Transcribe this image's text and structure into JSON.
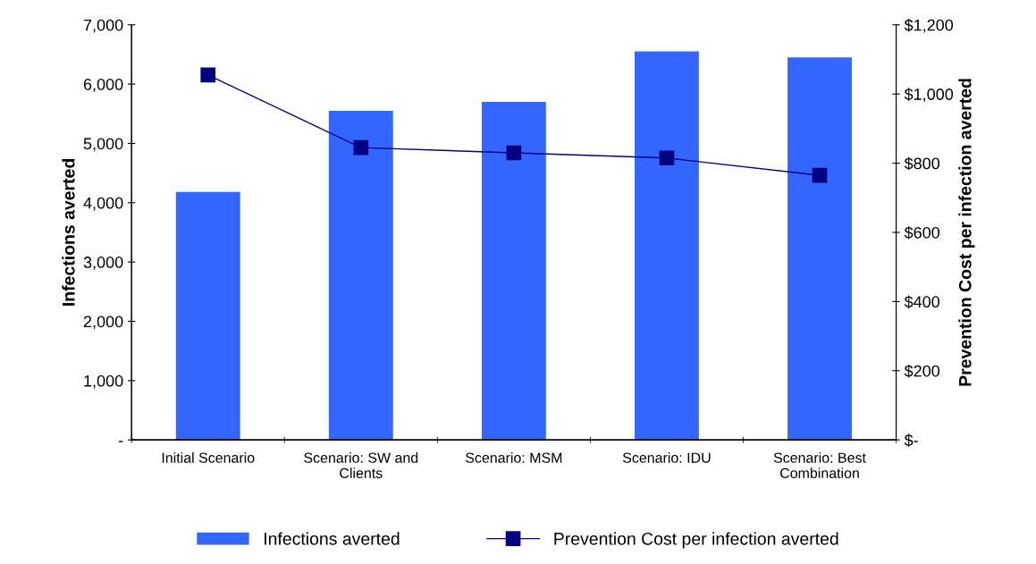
{
  "chart_data": {
    "type": "bar",
    "categories": [
      "Initial Scenario",
      "Scenario: SW and\nClients",
      "Scenario: MSM",
      "Scenario: IDU",
      "Scenario: Best\nCombination"
    ],
    "series": [
      {
        "name": "Infections averted",
        "color": "#3366ff",
        "values": [
          4180,
          5550,
          5700,
          6550,
          6450
        ]
      },
      {
        "name": "Prevention Cost per infection averted",
        "type": "line",
        "axis": "y2",
        "color": "#000080",
        "marker": "square",
        "values": [
          1055,
          845,
          830,
          815,
          765
        ]
      }
    ],
    "ylabel": "Infections averted",
    "y2label": "Prevention Cost per infection averted",
    "ylim": [
      0,
      7000
    ],
    "yticks": [
      {
        "value": 0,
        "label": "-"
      },
      {
        "value": 1000,
        "label": "1,000"
      },
      {
        "value": 2000,
        "label": "2,000"
      },
      {
        "value": 3000,
        "label": "3,000"
      },
      {
        "value": 4000,
        "label": "4,000"
      },
      {
        "value": 5000,
        "label": "5,000"
      },
      {
        "value": 6000,
        "label": "6,000"
      },
      {
        "value": 7000,
        "label": "7,000"
      }
    ],
    "y2lim": [
      0,
      1200
    ],
    "y2ticks": [
      {
        "value": 0,
        "label": "$-"
      },
      {
        "value": 200,
        "label": "$200"
      },
      {
        "value": 400,
        "label": "$400"
      },
      {
        "value": 600,
        "label": "$600"
      },
      {
        "value": 800,
        "label": "$800"
      },
      {
        "value": 1000,
        "label": "$1,000"
      },
      {
        "value": 1200,
        "label": "$1,200"
      }
    ],
    "grid": false,
    "legend": "bottom"
  }
}
